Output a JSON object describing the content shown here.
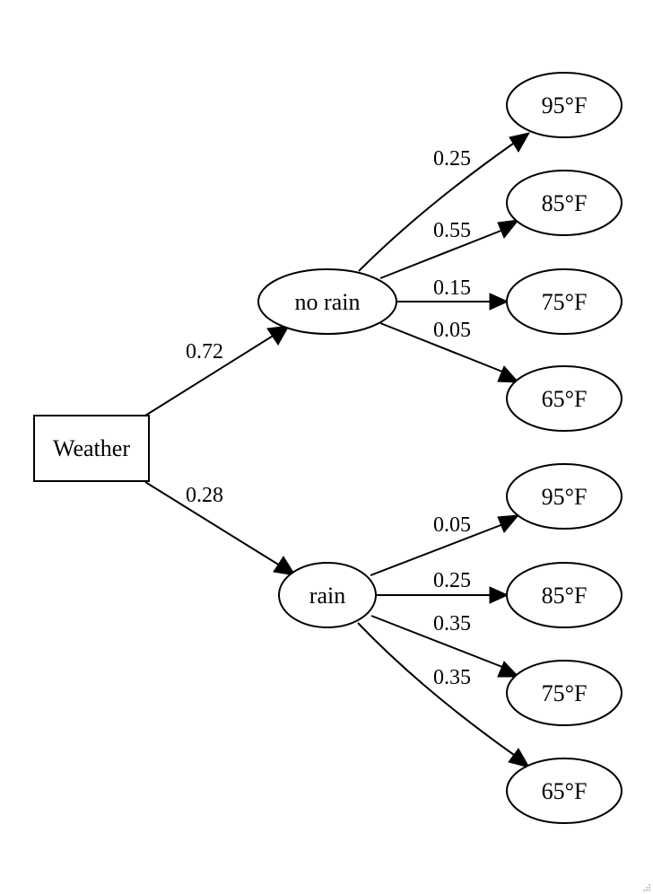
{
  "nodes": {
    "weather": "Weather",
    "no_rain": "no rain",
    "rain": "rain",
    "nr_95": "95°F",
    "nr_85": "85°F",
    "nr_75": "75°F",
    "nr_65": "65°F",
    "r_95": "95°F",
    "r_85": "85°F",
    "r_75": "75°F",
    "r_65": "65°F"
  },
  "edges": {
    "weather_no_rain": "0.72",
    "weather_rain": "0.28",
    "no_rain_95": "0.25",
    "no_rain_85": "0.55",
    "no_rain_75": "0.15",
    "no_rain_65": "0.05",
    "rain_95": "0.05",
    "rain_85": "0.25",
    "rain_75": "0.35",
    "rain_65": "0.35"
  }
}
